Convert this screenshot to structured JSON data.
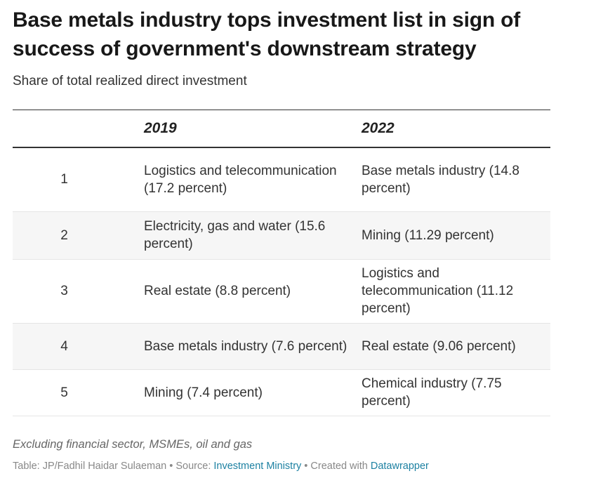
{
  "header": {
    "title": "Base metals industry tops investment list in sign of success of government's downstream strategy",
    "subtitle": "Share of total realized direct investment"
  },
  "chart_data": {
    "type": "table",
    "columns": [
      "",
      "2019",
      "2022"
    ],
    "rows": [
      {
        "rank": "1",
        "y2019": "Logistics and telecommunication (17.2 percent)",
        "y2022": "Base metals industry (14.8 percent)"
      },
      {
        "rank": "2",
        "y2019": "Electricity, gas and water (15.6 percent)",
        "y2022": "Mining (11.29 percent)"
      },
      {
        "rank": "3",
        "y2019": "Real estate (8.8 percent)",
        "y2022": "Logistics and telecommunication (11.12 percent)"
      },
      {
        "rank": "4",
        "y2019": "Base metals industry (7.6 percent)",
        "y2022": "Real estate (9.06 percent)"
      },
      {
        "rank": "5",
        "y2019": "Mining (7.4 percent)",
        "y2022": "Chemical industry (7.75 percent)"
      }
    ],
    "row_shading": "alternating"
  },
  "notes": "Excluding financial sector, MSMEs, oil and gas",
  "footer": {
    "table_prefix": "Table: JP/Fadhil Haidar Sulaeman",
    "separator": " • ",
    "source_prefix": "Source: ",
    "source_link": "Investment Ministry",
    "created_prefix": "Created with ",
    "created_link": "Datawrapper"
  },
  "colors": {
    "text": "#333333",
    "title": "#181818",
    "shade": "#f6f6f6",
    "link": "#1d81a2",
    "muted": "#888888"
  }
}
